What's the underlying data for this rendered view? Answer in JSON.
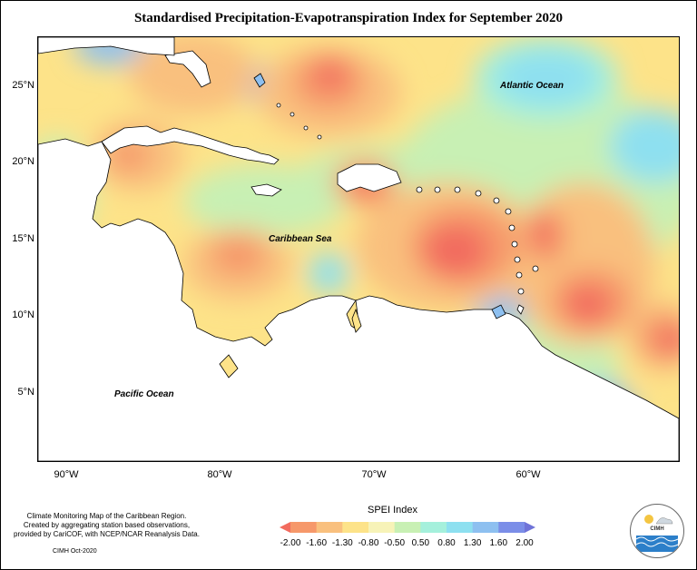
{
  "title": "Standardised Precipitation-Evapotranspiration Index for September 2020",
  "axes": {
    "latitude_labels": [
      "25°N",
      "20°N",
      "15°N",
      "10°N",
      "5°N"
    ],
    "longitude_labels": [
      "90°W",
      "80°W",
      "70°W",
      "60°W"
    ]
  },
  "labels": {
    "atlantic": "Atlantic Ocean",
    "caribbean": "Caribbean Sea",
    "pacific": "Pacific Ocean"
  },
  "footnote": {
    "line1": "Climate Monitoring Map of the Caribbean Region.",
    "line2": "Created by aggregating station based observations,",
    "line3": "provided by CariCOF, with NCEP/NCAR Reanalysis Data."
  },
  "credit": "CIMH Oct-2020",
  "legend": {
    "title": "SPEI Index",
    "labels": [
      "-2.00",
      "-1.60",
      "-1.30",
      "-0.80",
      "-0.50",
      "0.50",
      "0.80",
      "1.30",
      "1.60",
      "2.00"
    ],
    "colors": [
      "#f26b5e",
      "#f6986a",
      "#f9c07e",
      "#fde389",
      "#f7f3b8",
      "#c8f0b4",
      "#a5f0dc",
      "#8ee0f0",
      "#8ec0f0",
      "#7b8ee8",
      "#6f73d8"
    ]
  },
  "logo": {
    "text": "CIMH"
  }
}
